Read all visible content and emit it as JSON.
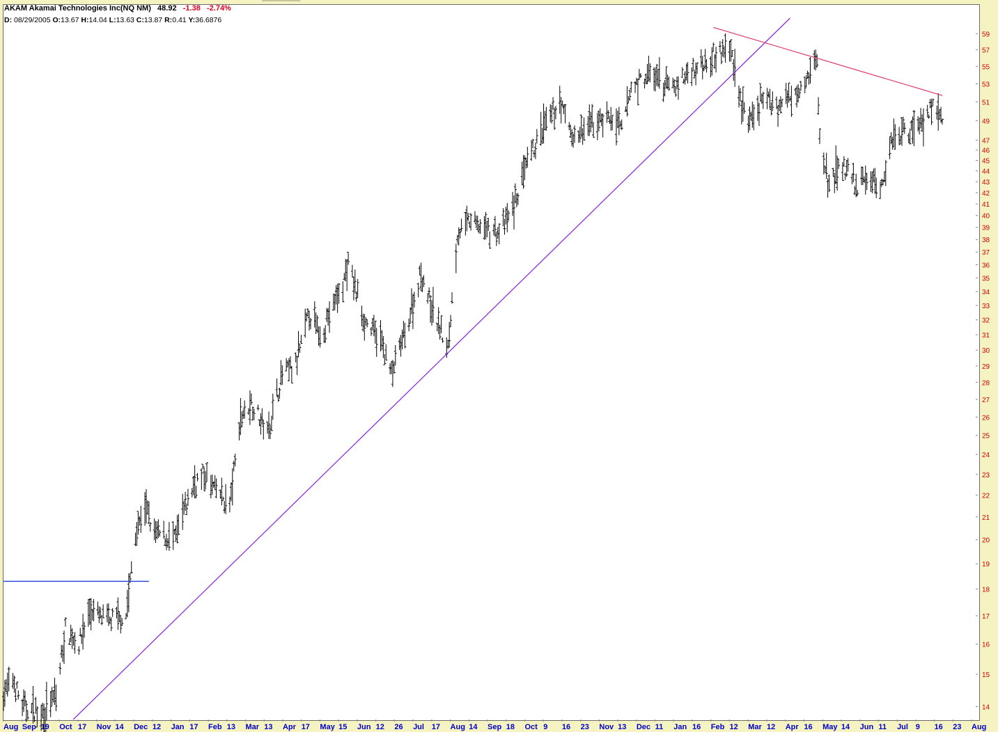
{
  "header": {
    "title": "AKAM Akamai Technologies Inc(NQ NM)",
    "last": "48.92",
    "change": "-1.38",
    "change_pct": "-2.74%",
    "d_label": "D:",
    "date": "08/29/2005",
    "o_label": "O:",
    "open": "13.67",
    "h_label": "H:",
    "high": "14.04",
    "l_label": "L:",
    "low": "13.63",
    "c_label": "C:",
    "close": "13.87",
    "r_label": "R:",
    "range": "0.41",
    "y_label": "Y:",
    "y_value": "36.6876"
  },
  "colors": {
    "background": "#f6f3c3",
    "plot": "#ffffff",
    "bars": "#000000",
    "axis_labels_y": "#d40000",
    "axis_labels_x": "#0000cc",
    "support_line": "#1f3fe0",
    "uptrend_line": "#8a2be2",
    "downtrend_line": "#e0457a"
  },
  "chart_data": {
    "type": "ohlc",
    "scale": "log",
    "symbol": "AKAM",
    "ylim": [
      13.3,
      61.0
    ],
    "y_ticks": [
      "14",
      "15",
      "16",
      "17",
      "18",
      "19",
      "20",
      "21",
      "22",
      "23",
      "24",
      "25",
      "26",
      "27",
      "28",
      "29",
      "30",
      "31",
      "32",
      "33",
      "34",
      "35",
      "36",
      "37",
      "38",
      "39",
      "40",
      "41",
      "42",
      "43",
      "44",
      "45",
      "46",
      "47",
      "49",
      "51",
      "53",
      "55",
      "57",
      "59"
    ],
    "x_tick_labels": [
      "Aug",
      "Sep",
      "19",
      "Oct",
      "17",
      "Nov",
      "14",
      "Dec",
      "12",
      "Jan",
      "17",
      "Feb",
      "13",
      "Mar",
      "13",
      "Apr",
      "17",
      "May",
      "15",
      "Jun",
      "12",
      "26",
      "Jul",
      "17",
      "Aug",
      "14",
      "Sep",
      "18",
      "Oct",
      "9",
      "16",
      "23",
      "Nov",
      "13",
      "Dec",
      "11",
      "Jan",
      "16",
      "Feb",
      "12",
      "Mar",
      "12",
      "Apr",
      "16",
      "May",
      "14",
      "Jun",
      "11",
      "Jul",
      "9",
      "16",
      "23",
      "Aug"
    ],
    "x_range": [
      "2005-08-29",
      "2007-07-27"
    ],
    "approx_price_path": [
      [
        "2005-08-29",
        14.4
      ],
      [
        "2005-09-05",
        14.8
      ],
      [
        "2005-09-12",
        14.0
      ],
      [
        "2005-09-26",
        13.8
      ],
      [
        "2005-10-07",
        14.3
      ],
      [
        "2005-10-14",
        16.5
      ],
      [
        "2005-10-24",
        16.0
      ],
      [
        "2005-11-01",
        17.2
      ],
      [
        "2005-11-14",
        16.8
      ],
      [
        "2005-11-28",
        17.0
      ],
      [
        "2005-12-05",
        20.2
      ],
      [
        "2005-12-12",
        21.5
      ],
      [
        "2005-12-19",
        20.3
      ],
      [
        "2006-01-03",
        20.0
      ],
      [
        "2006-01-17",
        22.5
      ],
      [
        "2006-01-24",
        23.0
      ],
      [
        "2006-02-06",
        22.0
      ],
      [
        "2006-02-13",
        21.5
      ],
      [
        "2006-02-21",
        26.0
      ],
      [
        "2006-03-01",
        26.8
      ],
      [
        "2006-03-13",
        25.2
      ],
      [
        "2006-03-24",
        28.5
      ],
      [
        "2006-04-03",
        29.0
      ],
      [
        "2006-04-13",
        32.5
      ],
      [
        "2006-04-21",
        31.0
      ],
      [
        "2006-05-08",
        34.5
      ],
      [
        "2006-05-12",
        36.0
      ],
      [
        "2006-05-24",
        32.0
      ],
      [
        "2006-06-06",
        30.5
      ],
      [
        "2006-06-13",
        28.5
      ],
      [
        "2006-06-26",
        32.0
      ],
      [
        "2006-07-05",
        35.5
      ],
      [
        "2006-07-12",
        33.0
      ],
      [
        "2006-07-19",
        31.5
      ],
      [
        "2006-07-25",
        30.0
      ],
      [
        "2006-08-01",
        38.5
      ],
      [
        "2006-08-10",
        39.5
      ],
      [
        "2006-08-21",
        39.0
      ],
      [
        "2006-09-01",
        38.5
      ],
      [
        "2006-09-11",
        40.5
      ],
      [
        "2006-09-20",
        44.0
      ],
      [
        "2006-10-03",
        48.0
      ],
      [
        "2006-10-16",
        51.0
      ],
      [
        "2006-10-27",
        47.0
      ],
      [
        "2006-11-07",
        48.5
      ],
      [
        "2006-11-20",
        49.5
      ],
      [
        "2006-12-01",
        48.0
      ],
      [
        "2006-12-08",
        52.5
      ],
      [
        "2006-12-20",
        54.0
      ],
      [
        "2007-01-08",
        52.5
      ],
      [
        "2007-01-22",
        54.5
      ],
      [
        "2007-02-07",
        56.5
      ],
      [
        "2007-02-20",
        57.0
      ],
      [
        "2007-02-27",
        51.5
      ],
      [
        "2007-03-06",
        48.5
      ],
      [
        "2007-03-16",
        51.5
      ],
      [
        "2007-03-28",
        50.5
      ],
      [
        "2007-04-10",
        52.5
      ],
      [
        "2007-04-25",
        55.5
      ],
      [
        "2007-04-27",
        47.0
      ],
      [
        "2007-05-03",
        43.0
      ],
      [
        "2007-05-14",
        44.5
      ],
      [
        "2007-05-24",
        42.5
      ],
      [
        "2007-06-04",
        43.5
      ],
      [
        "2007-06-11",
        42.0
      ],
      [
        "2007-06-20",
        47.5
      ],
      [
        "2007-07-02",
        48.0
      ],
      [
        "2007-07-12",
        49.0
      ],
      [
        "2007-07-20",
        50.5
      ],
      [
        "2007-07-27",
        49.0
      ]
    ],
    "trendlines": [
      {
        "id": "support",
        "from": [
          "2005-08-29",
          18.3
        ],
        "to": [
          "2005-12-15",
          18.3
        ]
      },
      {
        "id": "uptrend",
        "from": [
          "2005-10-14",
          13.4
        ],
        "to": [
          "2007-04-05",
          61.0
        ]
      },
      {
        "id": "downtrend",
        "from": [
          "2007-02-07",
          59.8
        ],
        "to": [
          "2007-07-27",
          51.7
        ]
      }
    ]
  }
}
